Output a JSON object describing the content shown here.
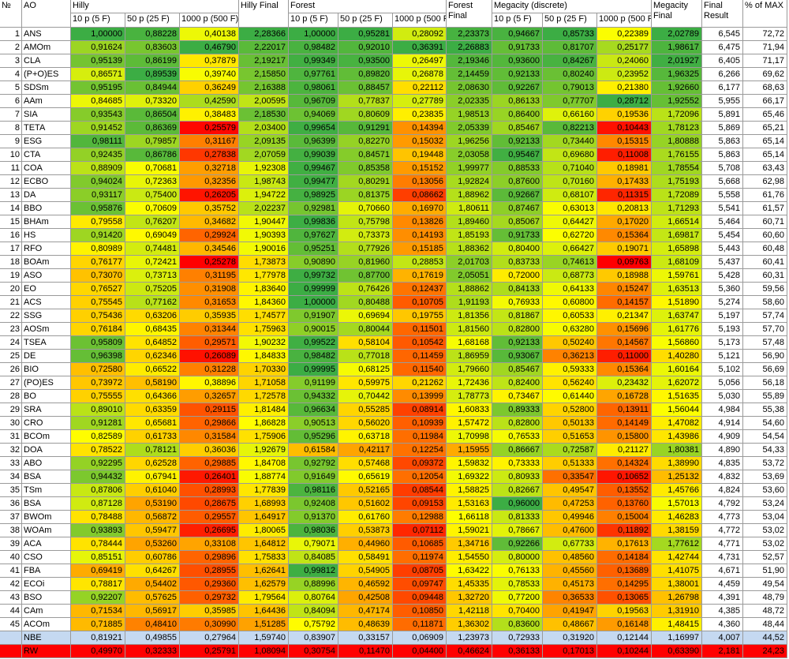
{
  "headers": {
    "no": "№",
    "ao": "AO",
    "hilly": "Hilly",
    "forest": "Forest",
    "megacity": "Megacity (discrete)",
    "sub10": "10 p (5 F)",
    "sub50": "50 p (25 F)",
    "sub1000": "1000 p (500 F)",
    "hilly_final": "Hilly Final",
    "forest_final": "Forest Final",
    "megacity_final": "Megacity Final",
    "final_result": "Final Result",
    "pct_max": "% of MAX"
  },
  "rows": [
    {
      "n": "1",
      "ao": "ANS",
      "v": [
        "1,00000",
        "0,88228",
        "0,40138",
        "2,28366",
        "1,00000",
        "0,95281",
        "0,28092",
        "2,23373",
        "0,94667",
        "0,85733",
        "0,22389",
        "2,02789",
        "6,545",
        "72,72"
      ]
    },
    {
      "n": "2",
      "ao": "AMOm",
      "v": [
        "0,91624",
        "0,83603",
        "0,46790",
        "2,22017",
        "0,98482",
        "0,92010",
        "0,36391",
        "2,26883",
        "0,91733",
        "0,81707",
        "0,25177",
        "1,98617",
        "6,475",
        "71,94"
      ]
    },
    {
      "n": "3",
      "ao": "CLA",
      "v": [
        "0,95139",
        "0,86199",
        "0,37879",
        "2,19217",
        "0,99349",
        "0,93500",
        "0,26497",
        "2,19346",
        "0,93600",
        "0,84267",
        "0,24060",
        "2,01927",
        "6,405",
        "71,17"
      ]
    },
    {
      "n": "4",
      "ao": "(P+O)ES",
      "v": [
        "0,86571",
        "0,89539",
        "0,39740",
        "2,15850",
        "0,97761",
        "0,89820",
        "0,26878",
        "2,14459",
        "0,92133",
        "0,80240",
        "0,23952",
        "1,96325",
        "6,266",
        "69,62"
      ]
    },
    {
      "n": "5",
      "ao": "SDSm",
      "v": [
        "0,95195",
        "0,84944",
        "0,36249",
        "2,16388",
        "0,98061",
        "0,88457",
        "0,22112",
        "2,08630",
        "0,92267",
        "0,79013",
        "0,21380",
        "1,92660",
        "6,177",
        "68,63"
      ]
    },
    {
      "n": "6",
      "ao": "AAm",
      "v": [
        "0,84685",
        "0,73320",
        "0,42590",
        "2,00595",
        "0,96709",
        "0,77837",
        "0,27789",
        "2,02335",
        "0,86133",
        "0,77707",
        "0,28712",
        "1,92552",
        "5,955",
        "66,17"
      ]
    },
    {
      "n": "7",
      "ao": "SIA",
      "v": [
        "0,93543",
        "0,86504",
        "0,38483",
        "2,18530",
        "0,94069",
        "0,80609",
        "0,23835",
        "1,98513",
        "0,86400",
        "0,66160",
        "0,19536",
        "1,72096",
        "5,891",
        "65,46"
      ]
    },
    {
      "n": "8",
      "ao": "TETA",
      "v": [
        "0,91452",
        "0,86369",
        "0,25579",
        "2,03400",
        "0,99654",
        "0,91291",
        "0,14394",
        "2,05339",
        "0,85467",
        "0,82213",
        "0,10443",
        "1,78123",
        "5,869",
        "65,21"
      ]
    },
    {
      "n": "9",
      "ao": "ESG",
      "v": [
        "0,98111",
        "0,79857",
        "0,31167",
        "2,09135",
        "0,96399",
        "0,82270",
        "0,15032",
        "1,96256",
        "0,92133",
        "0,73440",
        "0,15315",
        "1,80888",
        "5,863",
        "65,14"
      ]
    },
    {
      "n": "10",
      "ao": "CTA",
      "v": [
        "0,92435",
        "0,86786",
        "0,27838",
        "2,07059",
        "0,99039",
        "0,84571",
        "0,19448",
        "2,03058",
        "0,95467",
        "0,69680",
        "0,11008",
        "1,76155",
        "5,863",
        "65,14"
      ]
    },
    {
      "n": "11",
      "ao": "COA",
      "v": [
        "0,88909",
        "0,70681",
        "0,32718",
        "1,92308",
        "0,99467",
        "0,85358",
        "0,15152",
        "1,99977",
        "0,88533",
        "0,71040",
        "0,18981",
        "1,78554",
        "5,708",
        "63,43"
      ]
    },
    {
      "n": "12",
      "ao": "ECBO",
      "v": [
        "0,94024",
        "0,72363",
        "0,32356",
        "1,98743",
        "0,99477",
        "0,80291",
        "0,13056",
        "1,92824",
        "0,87600",
        "0,70160",
        "0,17433",
        "1,75193",
        "5,668",
        "62,98"
      ]
    },
    {
      "n": "13",
      "ao": "DA",
      "v": [
        "0,93117",
        "0,75400",
        "0,26205",
        "1,94722",
        "0,98925",
        "0,81375",
        "0,08662",
        "1,88962",
        "0,92667",
        "0,68107",
        "0,11315",
        "1,72089",
        "5,558",
        "61,76"
      ]
    },
    {
      "n": "14",
      "ao": "BBO",
      "v": [
        "0,95876",
        "0,70609",
        "0,35752",
        "2,02237",
        "0,92981",
        "0,70660",
        "0,16970",
        "1,80611",
        "0,87467",
        "0,63013",
        "0,20813",
        "1,71293",
        "5,541",
        "61,57"
      ]
    },
    {
      "n": "15",
      "ao": "BHAm",
      "v": [
        "0,79558",
        "0,76207",
        "0,34682",
        "1,90447",
        "0,99836",
        "0,75798",
        "0,13826",
        "1,89460",
        "0,85067",
        "0,64427",
        "0,17020",
        "1,66514",
        "5,464",
        "60,71"
      ]
    },
    {
      "n": "16",
      "ao": "HS",
      "v": [
        "0,91420",
        "0,69049",
        "0,29924",
        "1,90393",
        "0,97627",
        "0,73373",
        "0,14193",
        "1,85193",
        "0,91733",
        "0,62720",
        "0,15364",
        "1,69817",
        "5,454",
        "60,60"
      ]
    },
    {
      "n": "17",
      "ao": "RFO",
      "v": [
        "0,80989",
        "0,74481",
        "0,34546",
        "1,90016",
        "0,95251",
        "0,77926",
        "0,15185",
        "1,88362",
        "0,80400",
        "0,66427",
        "0,19071",
        "1,65898",
        "5,443",
        "60,48"
      ]
    },
    {
      "n": "18",
      "ao": "BOAm",
      "v": [
        "0,76177",
        "0,72421",
        "0,25278",
        "1,73873",
        "0,90890",
        "0,81960",
        "0,28853",
        "2,01703",
        "0,83733",
        "0,74613",
        "0,09763",
        "1,68109",
        "5,437",
        "60,41"
      ]
    },
    {
      "n": "19",
      "ao": "ASO",
      "v": [
        "0,73070",
        "0,73713",
        "0,31195",
        "1,77978",
        "0,99732",
        "0,87700",
        "0,17619",
        "2,05051",
        "0,72000",
        "0,68773",
        "0,18988",
        "1,59761",
        "5,428",
        "60,31"
      ]
    },
    {
      "n": "20",
      "ao": "EO",
      "v": [
        "0,76527",
        "0,75205",
        "0,31908",
        "1,83640",
        "0,99999",
        "0,76426",
        "0,12437",
        "1,88862",
        "0,84133",
        "0,64133",
        "0,15247",
        "1,63513",
        "5,360",
        "59,56"
      ]
    },
    {
      "n": "21",
      "ao": "ACS",
      "v": [
        "0,75545",
        "0,77162",
        "0,31653",
        "1,84360",
        "1,00000",
        "0,80488",
        "0,10705",
        "1,91193",
        "0,76933",
        "0,60800",
        "0,14157",
        "1,51890",
        "5,274",
        "58,60"
      ]
    },
    {
      "n": "22",
      "ao": "SSG",
      "v": [
        "0,75436",
        "0,63206",
        "0,35935",
        "1,74577",
        "0,91907",
        "0,69694",
        "0,19755",
        "1,81356",
        "0,81867",
        "0,60533",
        "0,21347",
        "1,63747",
        "5,197",
        "57,74"
      ]
    },
    {
      "n": "23",
      "ao": "AOSm",
      "v": [
        "0,76184",
        "0,68435",
        "0,31344",
        "1,75963",
        "0,90015",
        "0,80044",
        "0,11501",
        "1,81560",
        "0,82800",
        "0,63280",
        "0,15696",
        "1,61776",
        "5,193",
        "57,70"
      ]
    },
    {
      "n": "24",
      "ao": "TSEA",
      "v": [
        "0,95809",
        "0,64852",
        "0,29571",
        "1,90232",
        "0,99522",
        "0,58104",
        "0,10542",
        "1,68168",
        "0,92133",
        "0,50240",
        "0,14567",
        "1,56860",
        "5,173",
        "57,48"
      ]
    },
    {
      "n": "25",
      "ao": "DE",
      "v": [
        "0,96398",
        "0,62346",
        "0,26089",
        "1,84833",
        "0,98482",
        "0,77018",
        "0,11459",
        "1,86959",
        "0,93067",
        "0,36213",
        "0,11000",
        "1,40280",
        "5,121",
        "56,90"
      ]
    },
    {
      "n": "26",
      "ao": "BIO",
      "v": [
        "0,72580",
        "0,66522",
        "0,31228",
        "1,70330",
        "0,99995",
        "0,68125",
        "0,11540",
        "1,79660",
        "0,85467",
        "0,59333",
        "0,15364",
        "1,60164",
        "5,102",
        "56,69"
      ]
    },
    {
      "n": "27",
      "ao": "(PO)ES",
      "v": [
        "0,73972",
        "0,58190",
        "0,38896",
        "1,71058",
        "0,91199",
        "0,59975",
        "0,21262",
        "1,72436",
        "0,82400",
        "0,56240",
        "0,23432",
        "1,62072",
        "5,056",
        "56,18"
      ]
    },
    {
      "n": "28",
      "ao": "BO",
      "v": [
        "0,75555",
        "0,64366",
        "0,32657",
        "1,72578",
        "0,94332",
        "0,70442",
        "0,13999",
        "1,78773",
        "0,73467",
        "0,61440",
        "0,16728",
        "1,51635",
        "5,030",
        "55,89"
      ]
    },
    {
      "n": "29",
      "ao": "SRA",
      "v": [
        "0,89010",
        "0,63359",
        "0,29115",
        "1,81484",
        "0,96634",
        "0,55285",
        "0,08914",
        "1,60833",
        "0,89333",
        "0,52800",
        "0,13911",
        "1,56044",
        "4,984",
        "55,38"
      ]
    },
    {
      "n": "30",
      "ao": "CRO",
      "v": [
        "0,91281",
        "0,65681",
        "0,29866",
        "1,86828",
        "0,90513",
        "0,56020",
        "0,10939",
        "1,57472",
        "0,82800",
        "0,50133",
        "0,14149",
        "1,47082",
        "4,914",
        "54,60"
      ]
    },
    {
      "n": "31",
      "ao": "BCOm",
      "v": [
        "0,82589",
        "0,61733",
        "0,31584",
        "1,75906",
        "0,95296",
        "0,63718",
        "0,11984",
        "1,70998",
        "0,76533",
        "0,51653",
        "0,15800",
        "1,43986",
        "4,909",
        "54,54"
      ]
    },
    {
      "n": "32",
      "ao": "DOA",
      "v": [
        "0,78522",
        "0,78121",
        "0,36036",
        "1,92679",
        "0,61584",
        "0,42117",
        "0,12254",
        "1,15955",
        "0,86667",
        "0,72587",
        "0,21127",
        "1,80381",
        "4,890",
        "54,33"
      ]
    },
    {
      "n": "33",
      "ao": "ABO",
      "v": [
        "0,92295",
        "0,62528",
        "0,29885",
        "1,84708",
        "0,92792",
        "0,57468",
        "0,09372",
        "1,59832",
        "0,73333",
        "0,51333",
        "0,14324",
        "1,38990",
        "4,835",
        "53,72"
      ]
    },
    {
      "n": "34",
      "ao": "BSA",
      "v": [
        "0,94432",
        "0,67941",
        "0,26401",
        "1,88774",
        "0,91649",
        "0,65619",
        "0,12054",
        "1,69322",
        "0,80933",
        "0,33547",
        "0,10652",
        "1,25132",
        "4,832",
        "53,69"
      ]
    },
    {
      "n": "35",
      "ao": "TSm",
      "v": [
        "0,87806",
        "0,61040",
        "0,28993",
        "1,77839",
        "0,98116",
        "0,52165",
        "0,08544",
        "1,58825",
        "0,82667",
        "0,49547",
        "0,13552",
        "1,45766",
        "4,824",
        "53,60"
      ]
    },
    {
      "n": "36",
      "ao": "BSA",
      "v": [
        "0,87128",
        "0,53190",
        "0,28675",
        "1,68993",
        "0,92408",
        "0,51602",
        "0,09153",
        "1,53163",
        "0,96000",
        "0,47253",
        "0,13760",
        "1,57013",
        "4,792",
        "53,24"
      ]
    },
    {
      "n": "37",
      "ao": "BWOm",
      "v": [
        "0,78488",
        "0,56872",
        "0,29557",
        "1,64917",
        "0,91370",
        "0,61760",
        "0,12988",
        "1,66118",
        "0,81333",
        "0,49946",
        "0,15004",
        "1,46283",
        "4,773",
        "53,04"
      ]
    },
    {
      "n": "38",
      "ao": "WOAm",
      "v": [
        "0,93893",
        "0,59477",
        "0,26695",
        "1,80065",
        "0,98036",
        "0,53873",
        "0,07112",
        "1,59021",
        "0,78667",
        "0,47600",
        "0,11892",
        "1,38159",
        "4,772",
        "53,02"
      ]
    },
    {
      "n": "39",
      "ao": "ACA",
      "v": [
        "0,78444",
        "0,53260",
        "0,33108",
        "1,64812",
        "0,79071",
        "0,44960",
        "0,10685",
        "1,34716",
        "0,92266",
        "0,67733",
        "0,17613",
        "1,77612",
        "4,771",
        "53,02"
      ]
    },
    {
      "n": "40",
      "ao": "CSO",
      "v": [
        "0,85151",
        "0,60786",
        "0,29896",
        "1,75833",
        "0,84085",
        "0,58491",
        "0,11974",
        "1,54550",
        "0,80000",
        "0,48560",
        "0,14184",
        "1,42744",
        "4,731",
        "52,57"
      ]
    },
    {
      "n": "41",
      "ao": "FBA",
      "v": [
        "0,69419",
        "0,64267",
        "0,28955",
        "1,62641",
        "0,99812",
        "0,54905",
        "0,08705",
        "1,63422",
        "0,76133",
        "0,45560",
        "0,13689",
        "1,41075",
        "4,671",
        "51,90"
      ]
    },
    {
      "n": "42",
      "ao": "ECOi",
      "v": [
        "0,78817",
        "0,54402",
        "0,29360",
        "1,62579",
        "0,88996",
        "0,46592",
        "0,09747",
        "1,45335",
        "0,78533",
        "0,45173",
        "0,14295",
        "1,38001",
        "4,459",
        "49,54"
      ]
    },
    {
      "n": "43",
      "ao": "BSO",
      "v": [
        "0,92207",
        "0,57625",
        "0,29732",
        "1,79564",
        "0,80764",
        "0,42508",
        "0,09448",
        "1,32720",
        "0,77200",
        "0,36533",
        "0,13065",
        "1,26798",
        "4,391",
        "48,79"
      ]
    },
    {
      "n": "44",
      "ao": "CAm",
      "v": [
        "0,71534",
        "0,56917",
        "0,35985",
        "1,64436",
        "0,84094",
        "0,47174",
        "0,10850",
        "1,42118",
        "0,70400",
        "0,41947",
        "0,19563",
        "1,31910",
        "4,385",
        "48,72"
      ]
    },
    {
      "n": "45",
      "ao": "ACOm",
      "v": [
        "0,71885",
        "0,48410",
        "0,30990",
        "1,51285",
        "0,75792",
        "0,48639",
        "0,11871",
        "1,36302",
        "0,83600",
        "0,48667",
        "0,16148",
        "1,48415",
        "4,360",
        "48,44"
      ]
    },
    {
      "n": "",
      "ao": "NBE",
      "v": [
        "0,81921",
        "0,49855",
        "0,27964",
        "1,59740",
        "0,83907",
        "0,33157",
        "0,06909",
        "1,23973",
        "0,72933",
        "0,31920",
        "0,12144",
        "1,16997",
        "4,007",
        "44,52"
      ]
    },
    {
      "n": "",
      "ao": "RW",
      "v": [
        "0,49970",
        "0,32333",
        "0,25791",
        "1,08094",
        "0,30754",
        "0,11470",
        "0,04400",
        "0,46624",
        "0,36133",
        "0,17013",
        "0,10244",
        "0,63390",
        "2,181",
        "24,23"
      ]
    }
  ],
  "colors": {
    "scale_red": "#ff0000",
    "scale_orange": "#ff9900",
    "scale_yellow": "#ffff00",
    "scale_green": "#3cad44",
    "nbe_row_bg": "#c5d9f1",
    "rw_row_bg": "#ff0000",
    "grid": "#9a9a9a"
  }
}
